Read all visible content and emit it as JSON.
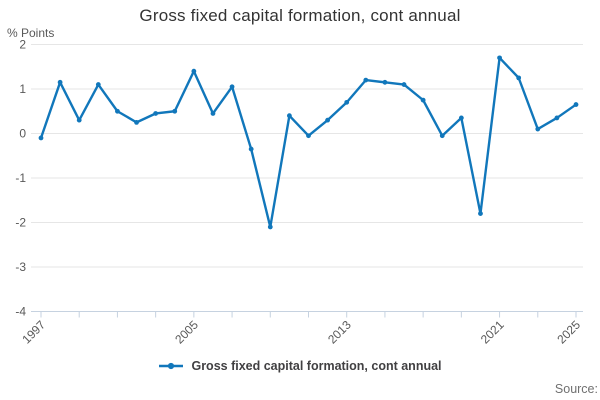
{
  "title": "Gross fixed capital formation, cont annual",
  "y_unit_label": "% Points",
  "source_label": "Source:",
  "legend": {
    "label": "Gross fixed capital formation, cont annual",
    "marker": "line-dot-icon"
  },
  "colors": {
    "line": "#1177bb",
    "grid": "#e6e6e6",
    "axis": "#c6d2e0",
    "tick_text": "#595959",
    "title_text": "#333333",
    "legend_text": "#414042",
    "source_text": "#707070"
  },
  "chart_data": {
    "type": "line",
    "title": "Gross fixed capital formation, cont annual",
    "xlabel": "",
    "ylabel": "% Points",
    "ylim": [
      -4,
      2
    ],
    "yticks": [
      2,
      1,
      0,
      -1,
      -2,
      -3,
      -4
    ],
    "x": [
      1997,
      1998,
      1999,
      2000,
      2001,
      2002,
      2003,
      2004,
      2005,
      2006,
      2007,
      2008,
      2009,
      2010,
      2011,
      2012,
      2013,
      2014,
      2015,
      2016,
      2017,
      2018,
      2019,
      2020,
      2021,
      2022,
      2023,
      2024,
      2025
    ],
    "series": [
      {
        "name": "Gross fixed capital formation, cont annual",
        "values": [
          -0.1,
          1.15,
          0.3,
          1.1,
          0.5,
          0.25,
          0.45,
          0.5,
          1.4,
          0.45,
          1.05,
          -0.35,
          -2.1,
          0.4,
          -0.05,
          0.3,
          0.7,
          1.2,
          1.15,
          1.1,
          0.75,
          -0.05,
          0.35,
          -1.8,
          1.7,
          1.25,
          0.1,
          0.35,
          0.65
        ]
      }
    ],
    "xtick_step": 2,
    "xtick_labels_shown": [
      "1997",
      "2005",
      "2013",
      "2021",
      "2025"
    ],
    "grid": "horizontal",
    "legend_position": "bottom",
    "marker": "dot"
  }
}
